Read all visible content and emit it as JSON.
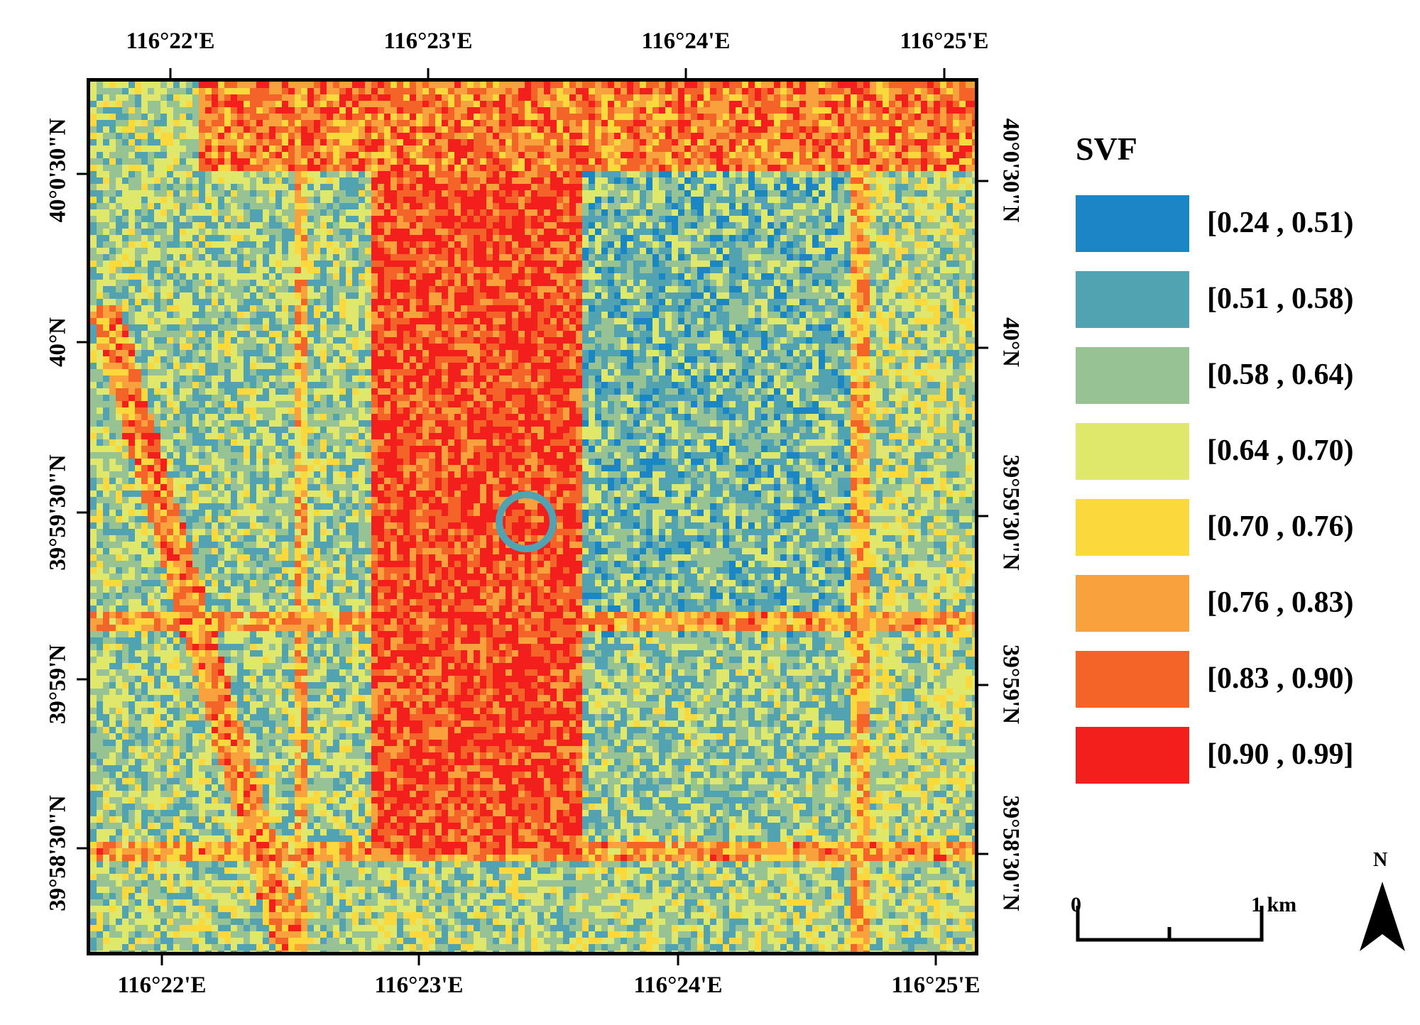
{
  "top_longitudes": [
    "116°22'E",
    "116°23'E",
    "116°24'E",
    "116°25'E"
  ],
  "bottom_longitudes": [
    "116°22'E",
    "116°23'E",
    "116°24'E",
    "116°25'E"
  ],
  "left_latitudes": [
    "40°0'30\"N",
    "40°N",
    "39°59'30\"N",
    "39°59'N",
    "39°58'30\"N"
  ],
  "right_latitudes": [
    "40°0'30\"N",
    "40°N",
    "39°59'30\"N",
    "39°59'N",
    "39°58'30\"N"
  ],
  "legend": {
    "title": "SVF",
    "classes": [
      {
        "label": "[0.24 , 0.51)",
        "color": "#1b86c4"
      },
      {
        "label": "[0.51 , 0.58)",
        "color": "#52a3b2"
      },
      {
        "label": "[0.58 , 0.64)",
        "color": "#97c394"
      },
      {
        "label": "[0.64 , 0.70)",
        "color": "#dfe86a"
      },
      {
        "label": "[0.70 , 0.76)",
        "color": "#fbd93c"
      },
      {
        "label": "[0.76 , 0.83)",
        "color": "#f9a23d"
      },
      {
        "label": "[0.83 , 0.90)",
        "color": "#f46428"
      },
      {
        "label": "[0.90 , 0.99]",
        "color": "#f21f1c"
      }
    ]
  },
  "scale_bar": {
    "start_label": "0",
    "end_label": "1 km"
  },
  "north_arrow": {
    "letter": "N"
  }
}
